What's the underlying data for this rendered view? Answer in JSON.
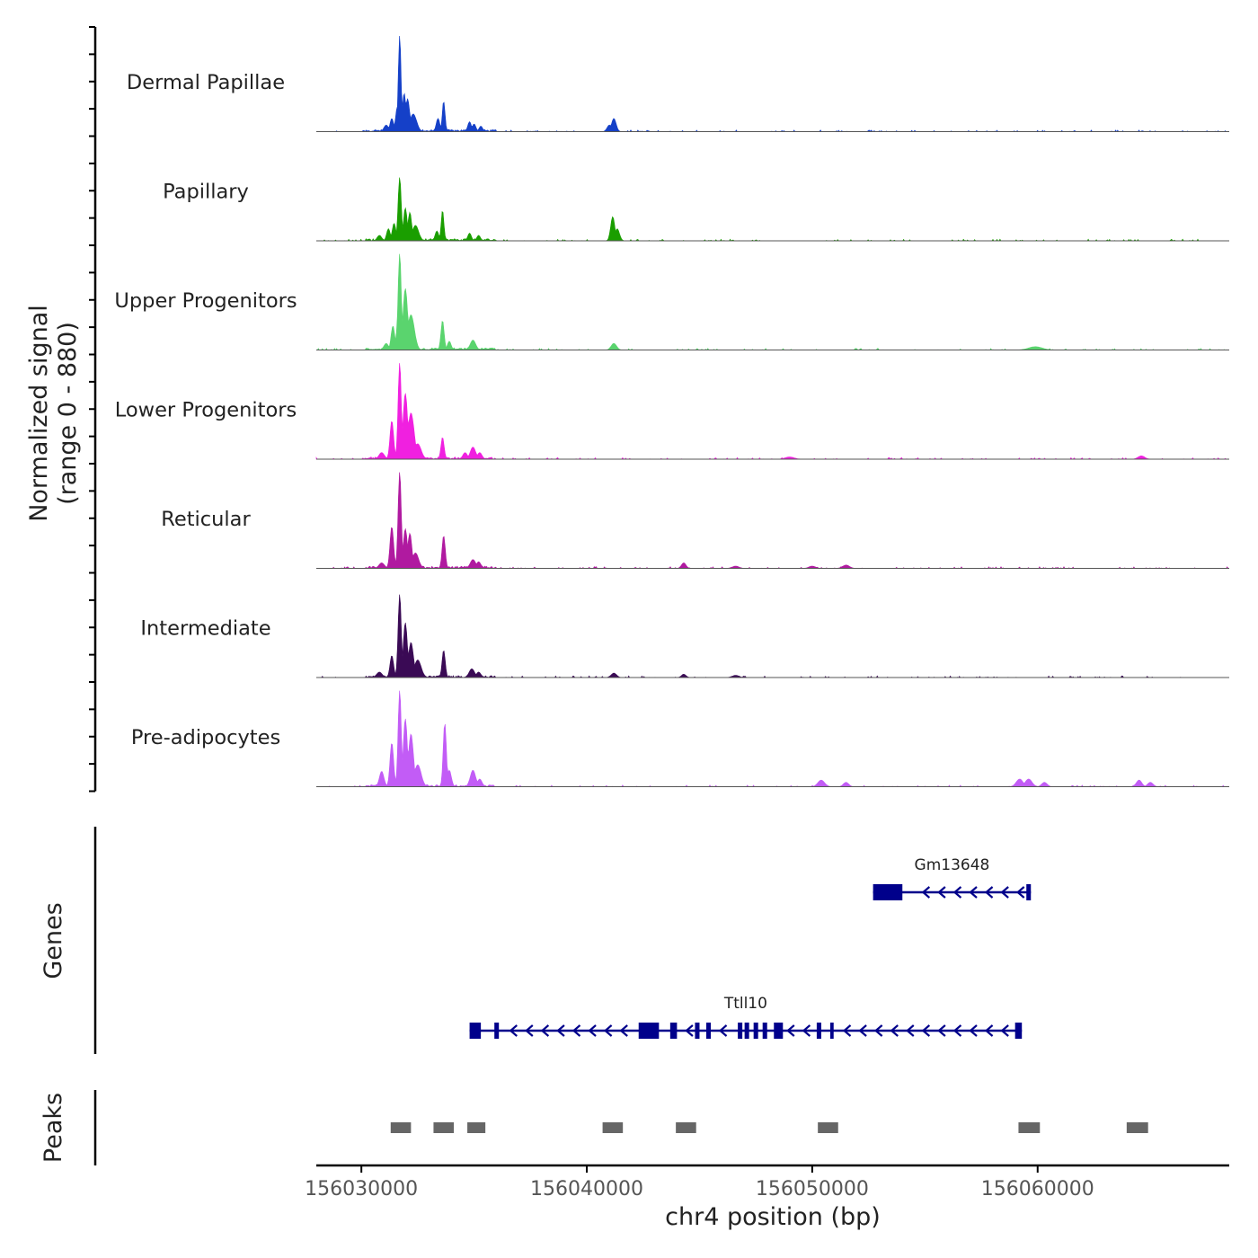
{
  "chart_data": {
    "type": "area",
    "title": "",
    "xlabel": "chr4 position (bp)",
    "ylabel": "Normalized signal\n(range 0 - 880)",
    "ylabel_lines": [
      "Normalized signal",
      "(range 0 - 880)"
    ],
    "y_range": [
      0,
      880
    ],
    "xlim": [
      156028000,
      156068500
    ],
    "xticks": [
      156030000,
      156040000,
      156050000,
      156060000
    ],
    "xtick_labels": [
      "156030000",
      "156040000",
      "156050000",
      "156060000"
    ],
    "panel_titles": {
      "genes": "Genes",
      "peaks": "Peaks"
    },
    "series": [
      {
        "name": "Dermal Papillae",
        "color": "#1540c8",
        "peaks": [
          [
            156031100,
            60,
            100
          ],
          [
            156031350,
            120,
            80
          ],
          [
            156031600,
            230,
            80
          ],
          [
            156031700,
            880,
            60
          ],
          [
            156031900,
            350,
            80
          ],
          [
            156032050,
            300,
            90
          ],
          [
            156032300,
            160,
            150
          ],
          [
            156033400,
            120,
            80
          ],
          [
            156033650,
            280,
            60
          ],
          [
            156034800,
            90,
            80
          ],
          [
            156035000,
            70,
            80
          ],
          [
            156035300,
            50,
            80
          ],
          [
            156041000,
            60,
            100
          ],
          [
            156041200,
            120,
            100
          ]
        ],
        "base_start": 156030200,
        "base_end": 156036000,
        "base_value": 20,
        "noise": 15
      },
      {
        "name": "Papillary",
        "color": "#1a9e00",
        "peaks": [
          [
            156030800,
            50,
            100
          ],
          [
            156031200,
            110,
            80
          ],
          [
            156031450,
            160,
            80
          ],
          [
            156031700,
            580,
            70
          ],
          [
            156031950,
            300,
            80
          ],
          [
            156032150,
            260,
            80
          ],
          [
            156032400,
            140,
            140
          ],
          [
            156033350,
            90,
            80
          ],
          [
            156033600,
            280,
            60
          ],
          [
            156034800,
            70,
            80
          ],
          [
            156035200,
            50,
            80
          ],
          [
            156041150,
            220,
            90
          ],
          [
            156041350,
            110,
            100
          ]
        ],
        "base_start": 156030200,
        "base_end": 156036000,
        "base_value": 20,
        "noise": 15
      },
      {
        "name": "Upper Progenitors",
        "color": "#5ad46e",
        "peaks": [
          [
            156031100,
            60,
            100
          ],
          [
            156031400,
            220,
            80
          ],
          [
            156031650,
            320,
            80
          ],
          [
            156031700,
            880,
            70
          ],
          [
            156031950,
            560,
            100
          ],
          [
            156032200,
            320,
            150
          ],
          [
            156033600,
            270,
            70
          ],
          [
            156033900,
            80,
            80
          ],
          [
            156034950,
            90,
            120
          ],
          [
            156041200,
            60,
            120
          ],
          [
            156059900,
            30,
            300
          ]
        ],
        "base_start": 156030200,
        "base_end": 156036000,
        "base_value": 20,
        "noise": 15
      },
      {
        "name": "Lower Progenitors",
        "color": "#f020e0",
        "peaks": [
          [
            156030900,
            60,
            120
          ],
          [
            156031350,
            350,
            80
          ],
          [
            156031700,
            880,
            70
          ],
          [
            156031950,
            600,
            100
          ],
          [
            156032200,
            420,
            140
          ],
          [
            156032500,
            140,
            150
          ],
          [
            156033600,
            200,
            70
          ],
          [
            156034600,
            60,
            100
          ],
          [
            156034950,
            110,
            120
          ],
          [
            156035250,
            60,
            100
          ],
          [
            156049000,
            20,
            200
          ],
          [
            156064600,
            30,
            150
          ]
        ],
        "base_start": 156030200,
        "base_end": 156036000,
        "base_value": 20,
        "noise": 15
      },
      {
        "name": "Reticular",
        "color": "#b01aa0",
        "peaks": [
          [
            156030900,
            50,
            120
          ],
          [
            156031350,
            380,
            80
          ],
          [
            156031700,
            880,
            70
          ],
          [
            156031950,
            360,
            90
          ],
          [
            156032150,
            320,
            90
          ],
          [
            156032400,
            140,
            140
          ],
          [
            156033650,
            300,
            70
          ],
          [
            156034950,
            80,
            120
          ],
          [
            156035200,
            60,
            100
          ],
          [
            156044300,
            50,
            100
          ],
          [
            156046600,
            20,
            150
          ],
          [
            156050000,
            20,
            150
          ],
          [
            156051500,
            30,
            150
          ]
        ],
        "base_start": 156030200,
        "base_end": 156036000,
        "base_value": 20,
        "noise": 15
      },
      {
        "name": "Intermediate",
        "color": "#3a0a55",
        "peaks": [
          [
            156030800,
            50,
            120
          ],
          [
            156031350,
            200,
            80
          ],
          [
            156031700,
            760,
            70
          ],
          [
            156031950,
            500,
            90
          ],
          [
            156032200,
            320,
            110
          ],
          [
            156032500,
            160,
            150
          ],
          [
            156033650,
            250,
            70
          ],
          [
            156034900,
            80,
            120
          ],
          [
            156035200,
            50,
            100
          ],
          [
            156041200,
            40,
            120
          ],
          [
            156044300,
            30,
            100
          ],
          [
            156046600,
            20,
            150
          ]
        ],
        "base_start": 156030200,
        "base_end": 156036000,
        "base_value": 20,
        "noise": 15
      },
      {
        "name": "Pre-adipocytes",
        "color": "#c25cf6",
        "peaks": [
          [
            156030900,
            140,
            100
          ],
          [
            156031350,
            400,
            80
          ],
          [
            156031700,
            880,
            70
          ],
          [
            156031950,
            620,
            90
          ],
          [
            156032200,
            480,
            110
          ],
          [
            156032500,
            200,
            150
          ],
          [
            156033700,
            580,
            70
          ],
          [
            156033900,
            150,
            90
          ],
          [
            156034950,
            150,
            120
          ],
          [
            156035250,
            70,
            100
          ],
          [
            156050400,
            60,
            150
          ],
          [
            156051500,
            40,
            120
          ],
          [
            156059200,
            70,
            150
          ],
          [
            156059600,
            70,
            150
          ],
          [
            156060300,
            40,
            120
          ],
          [
            156064500,
            60,
            120
          ],
          [
            156065000,
            40,
            120
          ]
        ],
        "base_start": 156030200,
        "base_end": 156036000,
        "base_value": 20,
        "noise": 15
      }
    ],
    "genes": [
      {
        "name": "Gm13648",
        "strand": "-",
        "start": 156052700,
        "end": 156059700,
        "row": 1,
        "exons": [
          [
            156052700,
            156054000
          ],
          [
            156059500,
            156059700
          ]
        ],
        "arrows": [
          156055000,
          156055700,
          156056400,
          156057100,
          156057800,
          156058500,
          156059200
        ]
      },
      {
        "name": "Ttll10",
        "strand": "-",
        "start": 156034800,
        "end": 156059300,
        "row": 2,
        "exons": [
          [
            156034800,
            156035300
          ],
          [
            156035900,
            156036100
          ],
          [
            156042300,
            156043200
          ],
          [
            156043700,
            156044000
          ],
          [
            156044800,
            156045000
          ],
          [
            156045300,
            156045500
          ],
          [
            156046700,
            156046900
          ],
          [
            156047000,
            156047200
          ],
          [
            156047400,
            156047600
          ],
          [
            156047800,
            156048000
          ],
          [
            156048300,
            156048700
          ],
          [
            156050200,
            156050400
          ],
          [
            156050800,
            156050950
          ],
          [
            156059000,
            156059300
          ]
        ],
        "arrows": [
          156036700,
          156037400,
          156038100,
          156038800,
          156039500,
          156040200,
          156040900,
          156041600,
          156044500,
          156046000,
          156049000,
          156049700,
          156051500,
          156052200,
          156052900,
          156053600,
          156054300,
          156055000,
          156055700,
          156056400,
          156057100,
          156057800,
          156058500
        ]
      }
    ],
    "peak_regions": [
      [
        156031300,
        156032200
      ],
      [
        156033200,
        156034100
      ],
      [
        156034700,
        156035500
      ],
      [
        156040700,
        156041600
      ],
      [
        156043950,
        156044850
      ],
      [
        156050250,
        156051150
      ],
      [
        156059150,
        156060100
      ],
      [
        156063950,
        156064900
      ]
    ],
    "colors": {
      "gene": "#00008b",
      "peak": "#666666",
      "axis": "#000000",
      "baseline": "#555555",
      "tick_text": "#555555"
    }
  }
}
